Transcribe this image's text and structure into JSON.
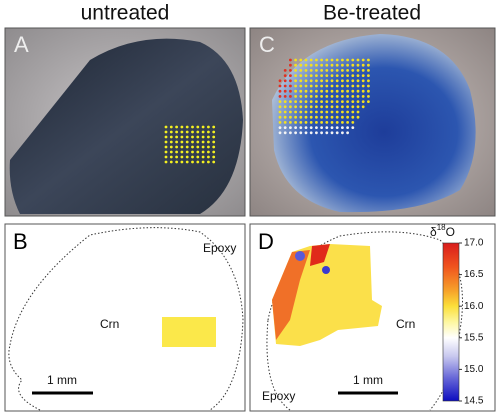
{
  "columns": [
    "untreated",
    "Be-treated"
  ],
  "panels": [
    {
      "letter": "A"
    },
    {
      "letter": "C"
    },
    {
      "letter": "B",
      "labels": [
        "Epoxy",
        "Crn"
      ],
      "scale_bar": "1 mm"
    },
    {
      "letter": "D",
      "labels": [
        "Crn",
        "Epoxy"
      ],
      "scale_bar": "1 mm"
    }
  ],
  "colorbar": {
    "title": {
      "symbol": "δ",
      "superscript": "18",
      "element": "O"
    },
    "lim": [
      14.5,
      17.0
    ],
    "ticks": [
      {
        "value": 17.0,
        "label": "17.0"
      },
      16.5,
      {
        "value": 16.0,
        "label": "16.0"
      },
      15.5,
      {
        "value": 15.0,
        "label": "15.0"
      },
      14.5
    ]
  }
}
